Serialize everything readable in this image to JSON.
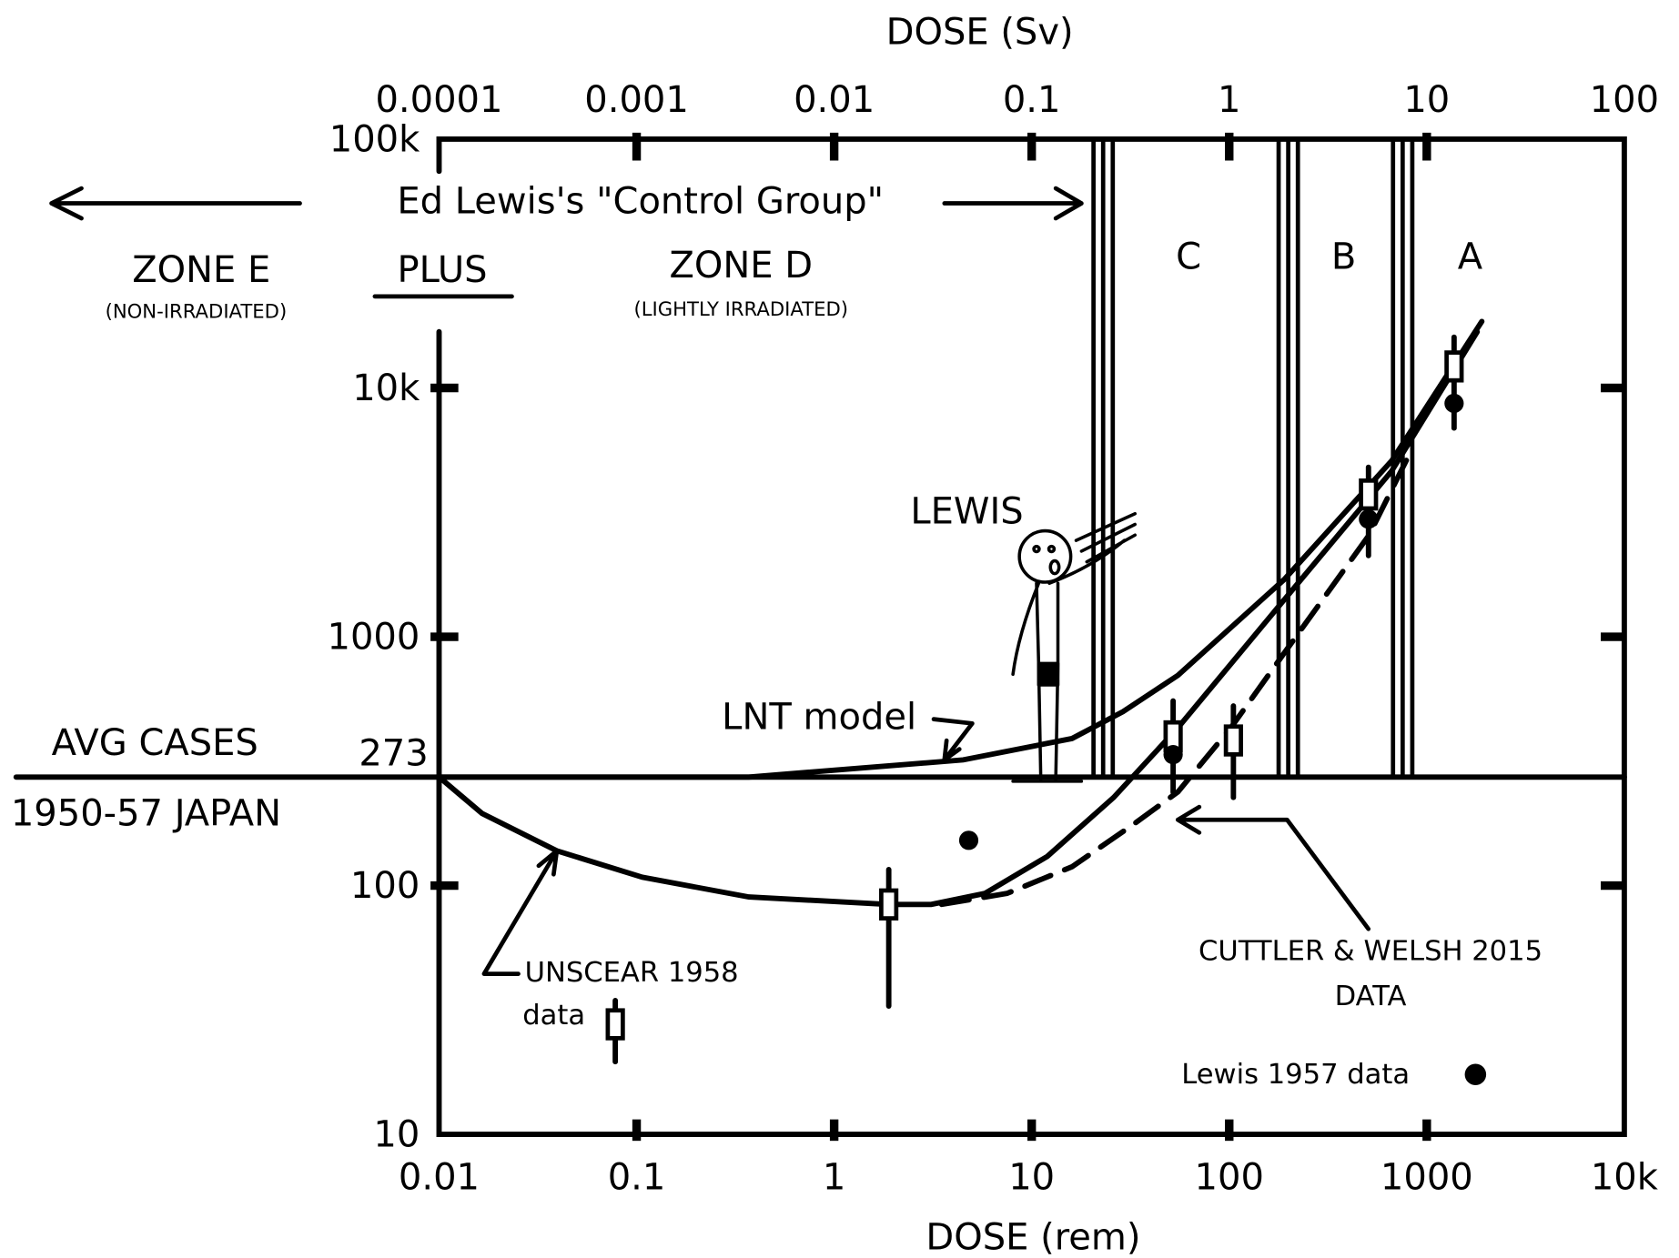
{
  "chart_data": {
    "type": "line",
    "x2_label": "DOSE (Sv)",
    "xlabel": "DOSE (rem)",
    "log_x": true,
    "log_y": true,
    "xlim": [
      0.01,
      10000
    ],
    "xticks": [
      0.01,
      0.1,
      1,
      10,
      100,
      1000,
      {
        "value": 10000,
        "label": "10k"
      }
    ],
    "x2lim": [
      0.0001,
      100
    ],
    "x2ticks": [
      0.0001,
      0.001,
      0.01,
      0.1,
      1,
      10,
      100
    ],
    "ylim": [
      10,
      100000
    ],
    "yticks": [
      10,
      100,
      1000,
      {
        "value": 10000,
        "label": "10k"
      },
      {
        "value": 100000,
        "label": "100k"
      }
    ],
    "reference": {
      "value": 273,
      "labels": [
        "AVG CASES",
        "1950-57 JAPAN"
      ]
    },
    "series": [
      {
        "color": "#000000",
        "style": "solid",
        "x": [
          0.01,
          0.37,
          4.5,
          16,
          29,
          55,
          190,
          665,
          1900
        ],
        "values": [
          273,
          273,
          320,
          390,
          500,
          700,
          1700,
          5100,
          18500
        ]
      },
      {
        "color": "#000000",
        "style": "solid",
        "x": [
          0.01,
          0.0165,
          0.0394,
          0.107,
          0.37,
          1.89,
          3.1,
          5.8,
          12,
          26,
          55,
          190,
          665,
          1800
        ],
        "values": [
          273,
          195,
          138,
          108,
          90,
          84,
          84,
          93,
          131,
          226,
          431,
          1410,
          4640,
          16800
        ]
      },
      {
        "color": "#000000",
        "style": "dashed",
        "x": [
          3.5,
          7.5,
          16,
          33,
          55,
          102,
          190,
          510,
          840
        ],
        "values": [
          84,
          93,
          119,
          177,
          238,
          431,
          861,
          2560,
          5660
        ]
      }
    ],
    "box_points": {
      "x": [
        0.078,
        1.89,
        52,
        105,
        507,
        1375
      ],
      "values": [
        27.7,
        84,
        398,
        383,
        3730,
        12200
      ],
      "low": [
        19.6,
        32.8,
        237,
        226,
        2120,
        6900
      ],
      "high": [
        34.5,
        116,
        552,
        527,
        4800,
        16000
      ]
    },
    "lewis_points": {
      "x": [
        4.8,
        52,
        507,
        1375
      ],
      "values": [
        152,
        336,
        2970,
        8670
      ]
    },
    "zones": {
      "boundaries": [
        23,
        199,
        755
      ],
      "labels": [
        "C",
        "B",
        "A"
      ]
    },
    "annotations": {
      "control_group": "Ed Lewis's \"Control Group\"",
      "zone_e": "ZONE E",
      "zone_e_note": "(NON-IRRADIATED)",
      "plus": "PLUS",
      "zone_d": "ZONE D",
      "zone_d_note": "(LIGHTLY IRRADIATED)",
      "lewis": "LEWIS",
      "lnt": "LNT model",
      "unscear": [
        "UNSCEAR 1958",
        "data"
      ],
      "cuttler": [
        "CUTTLER & WELSH 2015",
        "DATA"
      ],
      "lewis_data": "Lewis 1957 data"
    }
  }
}
